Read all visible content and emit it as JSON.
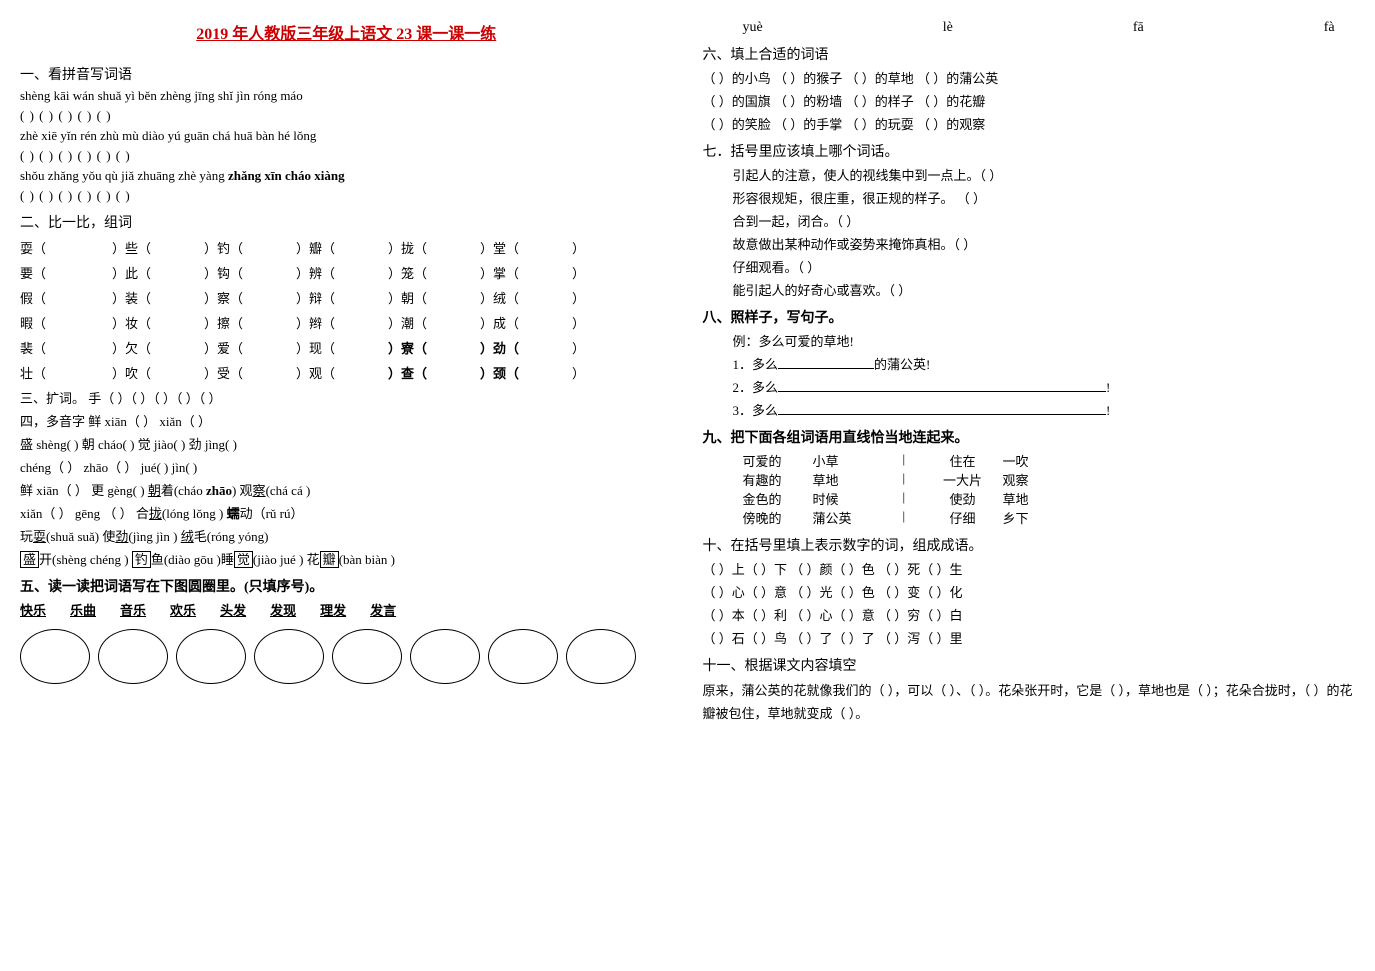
{
  "title": "2019 年人教版三年级上语文 23 课一课一练",
  "left": {
    "s1_head": "一、看拼音写词语",
    "pinyin_row1": "shèng  kāi  wán  shuǎ  yì  běn  zhèng  jīng  shǐ  jìn  róng  máo",
    "paren_row1": "(            ) (            ) (                        ) (          ) (            )",
    "pinyin_row2": "zhè  xiē  yǐn  rén  zhù  mù  diào  yú  guān  chá  huā  bàn  hé  lǒng",
    "paren_row2": "(        ) (                        ) (          ) (          ) (          ) (            )",
    "pinyin_row3": "shǒu  zhǎng  yǒu  qù  jiǎ  zhuāng    zhè  yàng",
    "pinyin_row3b": "zhǎng  xīn    cháo  xiàng",
    "paren_row3": "(            ) (            ) (            ) (          )   (            )    (              )",
    "s2_head": "二、比一比，组词",
    "char_grid": [
      [
        "耍（",
        "）些（",
        "）钓（",
        "）瓣（",
        "）拢（",
        "）堂（",
        "）"
      ],
      [
        "要（",
        "）此（",
        "）钩（",
        "）辨（",
        "）笼（",
        "）掌（",
        "）"
      ],
      [
        "假（",
        "）装（",
        "）察（",
        "）辩（",
        "）朝（",
        "）绒（",
        "）"
      ],
      [
        "暇（",
        "）妆（",
        "）擦（",
        "）辫（",
        "）潮（",
        "）成（",
        "）"
      ],
      [
        "裴（",
        "）欠（",
        "）爱（",
        "）现（",
        "）寮（",
        "）劲（",
        "）"
      ],
      [
        "壮（",
        "）吹（",
        "）受（",
        "）观（",
        "）查（",
        "）颈（",
        "）"
      ]
    ],
    "char_bold_positions": [
      [
        4,
        4
      ],
      [
        4,
        5
      ],
      [
        5,
        4
      ],
      [
        5,
        5
      ]
    ],
    "s3_head": "三、扩词。  手（          ）（          ）（          ）（          ）（          ）",
    "s4_head": "四，多音字    鲜 xiān（        ） xiǎn（        ）",
    "s4_lines": [
      "盛 shèng(          )   朝 cháo(          )   觉 jiào(          )   劲 jìng(          )",
      "   chéng（        ）      zhāo（        ）      jué(          )        jìn(          )",
      "鲜 xiān（        ）  更 gèng(          )      朝着(cháo zhāo)    观察(chá  cá )",
      "   xiǎn（        ）     gēng （        ）   合拢(lóng lǒng )   蠕动（rǔ rú）",
      "玩耍(shuǎ suǎ)   使劲(jìng jìn )   绒毛(róng    yóng)"
    ],
    "s4_boxed": "盛开(shèng  chéng ) 钓鱼(diào  gōu )睡觉(jiào  jué ) 花瓣(bàn  biàn  )",
    "s5_head": "五、读一读把词语写在下图圆圈里。(只填序号)。",
    "s5_words": [
      "快乐",
      "乐曲",
      "音乐",
      "欢乐",
      "头发",
      "发现",
      "理发",
      "发言"
    ]
  },
  "right": {
    "top_pinyin": [
      "yuè",
      "lè",
      "fā",
      "fà"
    ],
    "s6_head": "六、填上合适的词语",
    "s6_lines": [
      "（        ）的小鸟  （        ）的猴子  （        ）的草地   （        ）的蒲公英",
      "（        ）的国旗  （        ）的粉墙  （        ）的样子   （        ）的花瓣",
      "（        ）的笑脸  （        ）的手掌  （        ）的玩耍    （        ）的观察"
    ],
    "s7_head": "七．括号里应该填上哪个词话。",
    "s7_lines": [
      "引起人的注意，使人的视线集中到一点上。（            ）",
      "形容很规矩，很庄重，很正规的样子。    （            ）",
      "合到一起，闭合。（            ）",
      "故意做出某种动作或姿势来掩饰真相。（          ）",
      "仔细观看。（          ）",
      "能引起人的好奇心或喜欢。（          ）"
    ],
    "s8_head": "八、照样子，写句子。",
    "s8_lines": [
      "例：多么可爱的草地!",
      "1．多么____________的蒲公英!",
      "2．多么_________________________________________!",
      "3．多么_________________________________________!"
    ],
    "s9_head": "九、把下面各组词语用直线恰当地连起来。",
    "s9_rows": [
      [
        "可爱的",
        "小草",
        "|",
        "住在",
        "一吹"
      ],
      [
        "有趣的",
        "草地",
        "|",
        "一大片",
        "观察"
      ],
      [
        "金色的",
        "时候",
        "|",
        "使劲",
        "草地"
      ],
      [
        "傍晚的",
        "蒲公英",
        "|",
        "仔细",
        "乡下"
      ]
    ],
    "s10_head": "十、在括号里填上表示数字的词，组成成语。",
    "s10_lines": [
      "（      ）上（      ）下      （      ）颜（      ）色      （      ）死（      ）生",
      "（      ）心（      ）意      （      ）光（      ）色      （      ）变（      ）化",
      "（      ）本（      ）利      （      ）心（      ）意      （      ）穷（      ）白",
      "（      ）石（      ）鸟      （      ）了（      ）了      （      ）泻（      ）里"
    ],
    "s11_head": "十一、根据课文内容填空",
    "s11_text": "    原来，蒲公英的花就像我们的（          ），可以（          ）、（          ）。花朵张开时，它是（          ），草地也是（          ）；花朵合拢时，（          ）的花瓣被包住，草地就变成（          ）。"
  }
}
